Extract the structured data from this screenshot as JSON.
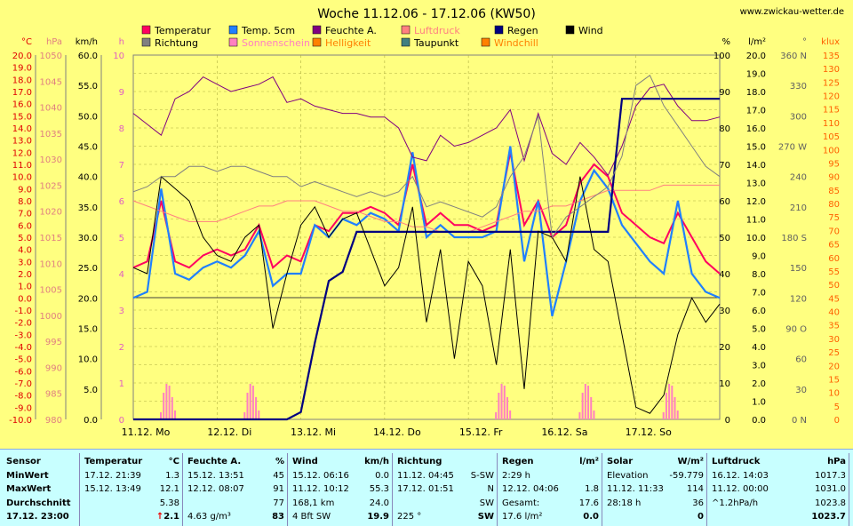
{
  "chart_data": {
    "type": "line",
    "title": "Woche 11.12.06 - 17.12.06 (KW50)",
    "source_url": "www.zwickau-wetter.de",
    "x_tick_labels": [
      "11.12. Mo",
      "12.12. Di",
      "13.12. Mi",
      "14.12. Do",
      "15.12. Fr",
      "16.12. Sa",
      "17.12. So"
    ],
    "axes": [
      {
        "unit": "°C",
        "color": "#e00000",
        "ticks": [
          "20.0",
          "19.0",
          "18.0",
          "17.0",
          "16.0",
          "15.0",
          "14.0",
          "13.0",
          "12.0",
          "11.0",
          "10.0",
          "9.0",
          "8.0",
          "7.0",
          "6.0",
          "5.0",
          "4.0",
          "3.0",
          "2.0",
          "1.0",
          "0.0",
          "-1.0",
          "-2.0",
          "-3.0",
          "-4.0",
          "-5.0",
          "-6.0",
          "-7.0",
          "-8.0",
          "-9.0",
          "-10.0"
        ]
      },
      {
        "unit": "hPa",
        "color": "#e08080",
        "ticks": [
          "1050",
          "1045",
          "1040",
          "1035",
          "1030",
          "1025",
          "1020",
          "1015",
          "1010",
          "1005",
          "1000",
          "995",
          "990",
          "985",
          "980"
        ]
      },
      {
        "unit": "km/h",
        "color": "#000000",
        "ticks": [
          "60.0",
          "55.0",
          "50.0",
          "45.0",
          "40.0",
          "35.0",
          "30.0",
          "25.0",
          "20.0",
          "15.0",
          "10.0",
          "5.0",
          "0.0"
        ]
      },
      {
        "unit": "h",
        "color": "#e060c0",
        "ticks": [
          "10",
          "9",
          "8",
          "7",
          "6",
          "5",
          "4",
          "3",
          "2",
          "1",
          "0"
        ]
      },
      {
        "unit": "%",
        "color": "#000000",
        "ticks": [
          "100",
          "90",
          "80",
          "70",
          "60",
          "50",
          "40",
          "30",
          "20",
          "10",
          "0"
        ]
      },
      {
        "unit": "l/m²",
        "color": "#000000",
        "ticks": [
          "20.0",
          "19.0",
          "18.0",
          "17.0",
          "16.0",
          "15.0",
          "14.0",
          "13.0",
          "12.0",
          "11.0",
          "10.0",
          "9.0",
          "8.0",
          "7.0",
          "6.0",
          "5.0",
          "4.0",
          "3.0",
          "2.0",
          "1.0",
          "0.0"
        ]
      },
      {
        "unit": "°",
        "color": "#606060",
        "ticks": [
          "360 N",
          "330",
          "300",
          "270 W",
          "240",
          "210",
          "180 S",
          "150",
          "120",
          "90 O",
          "60",
          "30",
          "0 N"
        ]
      },
      {
        "unit": "klux",
        "color": "#ff6000",
        "ticks": [
          "135",
          "130",
          "125",
          "120",
          "115",
          "110",
          "105",
          "100",
          "95",
          "90",
          "85",
          "80",
          "75",
          "70",
          "65",
          "60",
          "55",
          "50",
          "45",
          "40",
          "35",
          "30",
          "25",
          "20",
          "15",
          "10",
          "5",
          "0"
        ]
      }
    ],
    "legend": [
      {
        "label": "Temperatur",
        "color": "#ff0060"
      },
      {
        "label": "Temp. 5cm",
        "color": "#2080ff"
      },
      {
        "label": "Feuchte A.",
        "color": "#800080"
      },
      {
        "label": "Luftdruck",
        "color": "#ff8080"
      },
      {
        "label": "Regen",
        "color": "#000080"
      },
      {
        "label": "Wind",
        "color": "#000000"
      },
      {
        "label": "Richtung",
        "color": "#808080"
      },
      {
        "label": "Sonnenschein",
        "color": "#ff80c0"
      },
      {
        "label": "Helligkeit",
        "color": "#ff8000"
      },
      {
        "label": "Taupunkt",
        "color": "#408080"
      },
      {
        "label": "Windchill",
        "color": "#ff8000"
      }
    ],
    "series": [
      {
        "name": "Temperatur",
        "color": "#ff0060",
        "y": [
          2.5,
          3.0,
          8.0,
          3.0,
          2.5,
          3.5,
          4.0,
          3.5,
          4.0,
          6.0,
          2.5,
          3.5,
          3.0,
          6.0,
          5.5,
          7.0,
          7.0,
          7.5,
          7.0,
          6.0,
          11.0,
          6.0,
          7.0,
          6.0,
          6.0,
          5.5,
          6.0,
          12.0,
          6.0,
          8.0,
          5.0,
          6.0,
          9.5,
          11.0,
          10.0,
          7.0,
          6.0,
          5.0,
          4.5,
          7.0,
          5.0,
          3.0,
          2.0
        ]
      },
      {
        "name": "Temp. 5cm",
        "color": "#2080ff",
        "y": [
          0.0,
          0.5,
          9.0,
          2.0,
          1.5,
          2.5,
          3.0,
          2.5,
          3.5,
          5.5,
          1.0,
          2.0,
          2.0,
          6.0,
          5.0,
          6.5,
          6.0,
          7.0,
          6.5,
          5.5,
          12.0,
          5.0,
          6.0,
          5.0,
          5.0,
          5.0,
          5.5,
          12.5,
          3.0,
          8.0,
          -1.5,
          3.0,
          8.0,
          10.5,
          9.0,
          6.0,
          4.5,
          3.0,
          2.0,
          8.0,
          2.0,
          0.5,
          0.0
        ]
      },
      {
        "name": "Feuchte A.",
        "color": "#800080",
        "y": [
          84,
          81,
          78,
          88,
          90,
          94,
          92,
          90,
          91,
          92,
          94,
          87,
          88,
          86,
          85,
          84,
          84,
          83,
          83,
          80,
          72,
          71,
          78,
          75,
          76,
          78,
          80,
          85,
          71,
          84,
          73,
          70,
          76,
          72,
          67,
          75,
          86,
          91,
          92,
          86,
          82,
          82,
          83
        ]
      },
      {
        "name": "Luftdruck",
        "color": "#ff8080",
        "y": [
          1022,
          1021,
          1020,
          1019,
          1018,
          1018,
          1018,
          1019,
          1020,
          1021,
          1021,
          1022,
          1022,
          1022,
          1021,
          1020,
          1020,
          1019,
          1018,
          1018,
          1017,
          1017,
          1016,
          1016,
          1016,
          1017,
          1018,
          1019,
          1020,
          1020,
          1021,
          1021,
          1022,
          1023,
          1024,
          1024,
          1024,
          1024,
          1025,
          1025,
          1025,
          1025,
          1025
        ]
      },
      {
        "name": "Regen",
        "color": "#000080",
        "y": [
          0.0,
          0.0,
          0.0,
          0.0,
          0.0,
          0.0,
          0.0,
          0.0,
          0.0,
          0.0,
          0.0,
          0.0,
          0.4,
          4.2,
          7.6,
          8.1,
          10.3,
          10.3,
          10.3,
          10.3,
          10.3,
          10.3,
          10.3,
          10.3,
          10.3,
          10.3,
          10.3,
          10.3,
          10.3,
          10.3,
          10.3,
          10.3,
          10.3,
          10.3,
          10.3,
          17.6,
          17.6,
          17.6,
          17.6,
          17.6,
          17.6,
          17.6,
          17.6
        ]
      },
      {
        "name": "Wind",
        "color": "#000000",
        "y": [
          25.0,
          24.0,
          40.0,
          38.0,
          36.0,
          30.0,
          27.0,
          26.0,
          30.0,
          32.0,
          15.0,
          24.0,
          32.0,
          35.0,
          30.0,
          33.0,
          34.0,
          28.0,
          22.0,
          25.0,
          35.0,
          16.0,
          28.0,
          10.0,
          26.0,
          22.0,
          9.0,
          28.0,
          5.0,
          31.0,
          30.0,
          26.0,
          40.0,
          28.0,
          26.0,
          14.0,
          2.0,
          1.0,
          4.0,
          14.0,
          20.0,
          16.0,
          19.0
        ]
      },
      {
        "name": "Richtung",
        "color": "#808080",
        "y": [
          225,
          230,
          240,
          240,
          250,
          250,
          245,
          250,
          250,
          245,
          240,
          240,
          230,
          235,
          230,
          225,
          220,
          225,
          220,
          225,
          240,
          210,
          215,
          210,
          205,
          200,
          210,
          240,
          260,
          300,
          180,
          200,
          210,
          220,
          230,
          260,
          330,
          340,
          310,
          290,
          270,
          250,
          240
        ]
      }
    ],
    "sun_bars_days": [
      "11.12.",
      "12.12.",
      "15.12.",
      "16.12.",
      "17.12."
    ]
  },
  "table": {
    "columns": [
      {
        "header": "Sensor",
        "rows": [
          "MinWert",
          "MaxWert",
          "Durchschnitt",
          "17.12. 23:00"
        ]
      },
      {
        "header": "Temperatur",
        "unit": "°C",
        "rows": [
          [
            "17.12. 21:39",
            "1.3"
          ],
          [
            "15.12. 13:49",
            "12.1"
          ],
          [
            "",
            "5.38"
          ],
          [
            "",
            "2.1"
          ]
        ],
        "trend": "↑"
      },
      {
        "header": "Feuchte A.",
        "unit": "%",
        "rows": [
          [
            "15.12. 13:51",
            "45"
          ],
          [
            "12.12. 08:07",
            "91"
          ],
          [
            "",
            "77"
          ],
          [
            "4.63 g/m³",
            "83"
          ]
        ]
      },
      {
        "header": "Wind",
        "unit": "km/h",
        "rows": [
          [
            "15.12. 06:16",
            "0.0"
          ],
          [
            "11.12. 10:12",
            "55.3"
          ],
          [
            "168,1 km",
            "24.0"
          ],
          [
            "4 Bft SW",
            "19.9"
          ]
        ]
      },
      {
        "header": "Richtung",
        "unit": "",
        "rows": [
          [
            "11.12. 04:45",
            "S-SW"
          ],
          [
            "17.12. 01:51",
            "N"
          ],
          [
            "",
            "SW"
          ],
          [
            "225 °",
            "SW"
          ]
        ]
      },
      {
        "header": "Regen",
        "unit": "l/m²",
        "rows": [
          [
            "2:29 h",
            ""
          ],
          [
            "12.12. 04:06",
            "1.8"
          ],
          [
            "Gesamt:",
            "17.6"
          ],
          [
            "17.6 l/m²",
            "0.0"
          ]
        ]
      },
      {
        "header": "Solar",
        "unit": "W/m²",
        "rows": [
          [
            "Elevation",
            "-59.779"
          ],
          [
            "11.12. 11:33",
            "114"
          ],
          [
            "28:18 h",
            "36"
          ],
          [
            "",
            "0"
          ]
        ]
      },
      {
        "header": "Luftdruck",
        "unit": "hPa",
        "rows": [
          [
            "16.12. 14:03",
            "1017.3"
          ],
          [
            "11.12. 00:00",
            "1031.0"
          ],
          [
            "^1.2hPa/h",
            "1023.8"
          ],
          [
            "",
            "1023.7"
          ]
        ]
      }
    ]
  }
}
